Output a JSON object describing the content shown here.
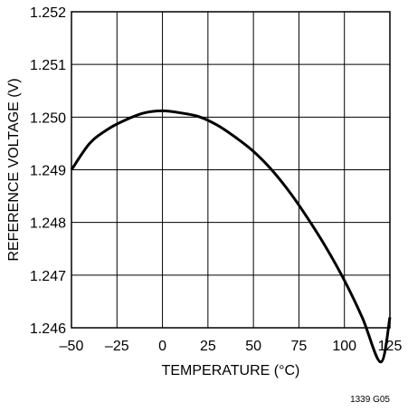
{
  "chart_data": {
    "type": "line",
    "xlabel": "TEMPERATURE (°C)",
    "ylabel": "REFERENCE VOLTAGE (V)",
    "xlim": [
      -50,
      125
    ],
    "ylim": [
      1.246,
      1.252
    ],
    "x_ticks": [
      -50,
      -25,
      0,
      25,
      50,
      75,
      100,
      125
    ],
    "x_tick_labels": [
      "–50",
      "–25",
      "0",
      "25",
      "50",
      "75",
      "100",
      "125"
    ],
    "y_ticks": [
      1.246,
      1.247,
      1.248,
      1.249,
      1.25,
      1.251,
      1.252
    ],
    "y_tick_labels": [
      "1.246",
      "1.247",
      "1.248",
      "1.249",
      "1.250",
      "1.251",
      "1.252"
    ],
    "grid": true,
    "series": [
      {
        "x": [
          -50,
          -40,
          -30,
          -20,
          -10,
          0,
          10,
          20,
          30,
          40,
          50,
          60,
          70,
          80,
          90,
          100,
          110,
          120,
          125
        ],
        "y": [
          1.249,
          1.2495,
          1.24977,
          1.24995,
          1.25008,
          1.25012,
          1.25008,
          1.25001,
          1.24985,
          1.24962,
          1.24935,
          1.249,
          1.24857,
          1.24807,
          1.24752,
          1.2469,
          1.24618,
          1.24535,
          1.2462
        ],
        "color": "#000000"
      }
    ]
  },
  "figure_id": "1339 G05"
}
